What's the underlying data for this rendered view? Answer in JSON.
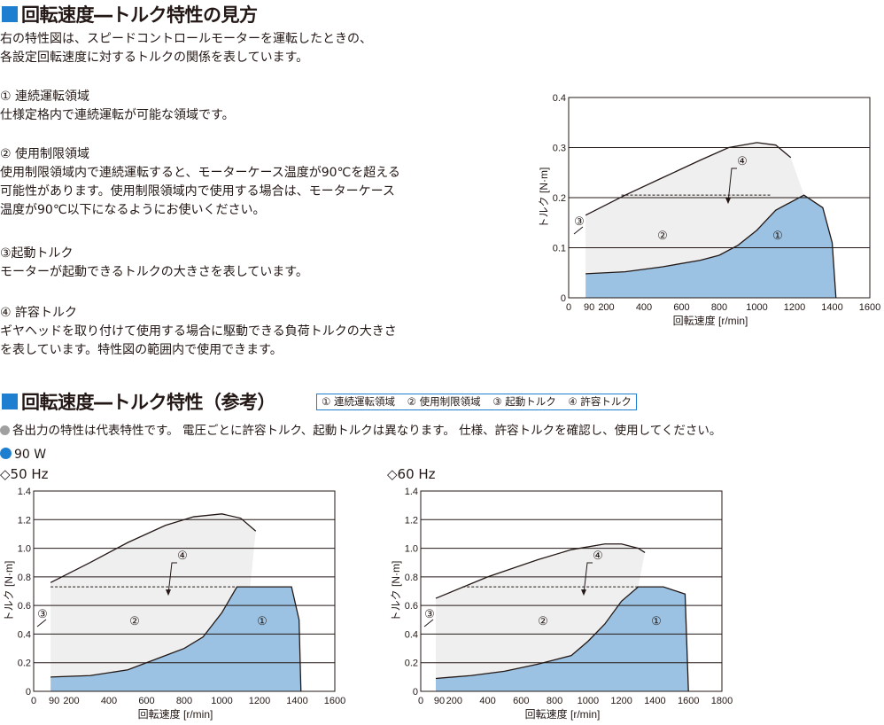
{
  "section1": {
    "title": "回転速度―トルク特性の見方",
    "intro": [
      "右の特性図は、スピードコントロールモーターを運転したときの、",
      "各設定回転速度に対するトルクの関係を表しています。"
    ],
    "items": [
      {
        "heading": "① 連続運転領域",
        "lines": [
          "仕様定格内で連続運転が可能な領域です。"
        ]
      },
      {
        "heading": "② 使用制限領域",
        "lines": [
          "使用制限領域内で連続運転すると、モーターケース温度が90℃を超える",
          "可能性があります。使用制限領域内で使用する場合は、モーターケース",
          "温度が90℃以下になるようにお使いください。"
        ]
      },
      {
        "heading": "③起動トルク",
        "lines": [
          "モーターが起動できるトルクの大きさを表しています。"
        ]
      },
      {
        "heading": "④ 許容トルク",
        "lines": [
          "ギヤヘッドを取り付けて使用する場合に駆動できる負荷トルクの大きさ",
          "を表しています。特性図の範囲内で使用できます。"
        ]
      }
    ]
  },
  "section2": {
    "title": "回転速度―トルク特性（参考）",
    "legend": [
      "① 連続運転領域",
      "② 使用制限領域",
      "③ 起動トルク",
      "④ 許容トルク"
    ],
    "note": "各出力の特性は代表特性です。 電圧ごとに許容トルク、起動トルクは異なります。 仕様、許容トルクを確認し、使用してください。",
    "model": "90 W",
    "colors": {
      "note_dot": "#a0a0a0",
      "model_dot": "#1e7fd0",
      "continuous": "#9bc2e2",
      "limited": "#efefef",
      "accent": "#1e7fd0"
    }
  },
  "charts_meta": [
    {
      "id": "explain",
      "subtitle": ""
    },
    {
      "id": "hz50",
      "subtitle": "◇50 Hz"
    },
    {
      "id": "hz60",
      "subtitle": "◇60 Hz"
    }
  ],
  "chart_data": [
    {
      "type": "area",
      "xlabel": "回転速度 [r/min]",
      "ylabel": "トルク [N·m]",
      "xlim": [
        0,
        1600
      ],
      "ylim": [
        0,
        0.4
      ],
      "xticks": [
        "0",
        "90",
        "200",
        "400",
        "600",
        "800",
        "1000",
        "1200",
        "1400",
        "1600"
      ],
      "yticks": [
        "0",
        "0.1",
        "0.2",
        "0.3",
        "0.4"
      ],
      "grid": "horizontal",
      "region_labels": [
        "①",
        "②",
        "③",
        "④"
      ],
      "series": [
        {
          "name": "① 連続運転領域",
          "x": [
            90,
            300,
            500,
            700,
            800,
            900,
            1000,
            1100,
            1250,
            1350,
            1400,
            1420
          ],
          "y": [
            0.048,
            0.052,
            0.062,
            0.075,
            0.085,
            0.105,
            0.135,
            0.175,
            0.205,
            0.18,
            0.11,
            0.0
          ]
        },
        {
          "name": "使用制限領域上限",
          "x": [
            90,
            300,
            500,
            700,
            850,
            1000,
            1100,
            1180
          ],
          "y": [
            0.165,
            0.205,
            0.24,
            0.275,
            0.3,
            0.31,
            0.305,
            0.28
          ]
        },
        {
          "name": "④ 許容トルク",
          "x": [
            280,
            1080
          ],
          "y": [
            0.205,
            0.205
          ]
        }
      ]
    },
    {
      "type": "area",
      "xlabel": "回転速度 [r/min]",
      "ylabel": "トルク [N·m]",
      "xlim": [
        0,
        1600
      ],
      "ylim": [
        0,
        1.4
      ],
      "xticks": [
        "0",
        "90",
        "200",
        "400",
        "600",
        "800",
        "1000",
        "1200",
        "1400",
        "1600"
      ],
      "yticks": [
        "0",
        "0.2",
        "0.4",
        "0.6",
        "0.8",
        "1.0",
        "1.2",
        "1.4"
      ],
      "grid": "horizontal",
      "region_labels": [
        "①",
        "②",
        "③",
        "④"
      ],
      "series": [
        {
          "name": "① 連続運転領域",
          "x": [
            90,
            300,
            500,
            700,
            800,
            900,
            1000,
            1080,
            1150,
            1250,
            1370,
            1410,
            1420
          ],
          "y": [
            0.1,
            0.11,
            0.15,
            0.25,
            0.3,
            0.38,
            0.55,
            0.73,
            0.73,
            0.73,
            0.73,
            0.5,
            0.0
          ]
        },
        {
          "name": "使用制限領域上限",
          "x": [
            90,
            300,
            500,
            700,
            850,
            1000,
            1100,
            1180
          ],
          "y": [
            0.76,
            0.9,
            1.04,
            1.16,
            1.22,
            1.24,
            1.21,
            1.12
          ]
        },
        {
          "name": "④ 許容トルク",
          "x": [
            90,
            1100
          ],
          "y": [
            0.73,
            0.73
          ]
        }
      ]
    },
    {
      "type": "area",
      "xlabel": "回転速度 [r/min]",
      "ylabel": "トルク [N·m]",
      "xlim": [
        0,
        1800
      ],
      "ylim": [
        0,
        1.4
      ],
      "xticks": [
        "0",
        "90",
        "200",
        "400",
        "600",
        "800",
        "1000",
        "1200",
        "1400",
        "1600",
        "1800"
      ],
      "yticks": [
        "0",
        "0.2",
        "0.4",
        "0.6",
        "0.8",
        "1.0",
        "1.2",
        "1.4"
      ],
      "grid": "horizontal",
      "region_labels": [
        "①",
        "②",
        "③",
        "④"
      ],
      "series": [
        {
          "name": "① 連続運転領域",
          "x": [
            90,
            300,
            500,
            700,
            800,
            900,
            1000,
            1100,
            1200,
            1300,
            1450,
            1580,
            1600
          ],
          "y": [
            0.09,
            0.11,
            0.14,
            0.19,
            0.22,
            0.25,
            0.35,
            0.47,
            0.63,
            0.73,
            0.73,
            0.68,
            0.0
          ]
        },
        {
          "name": "使用制限領域上限",
          "x": [
            90,
            400,
            700,
            900,
            1100,
            1200,
            1300,
            1340
          ],
          "y": [
            0.65,
            0.8,
            0.92,
            0.99,
            1.03,
            1.03,
            1.0,
            0.97
          ]
        },
        {
          "name": "④ 許容トルク",
          "x": [
            250,
            1300
          ],
          "y": [
            0.73,
            0.73
          ]
        }
      ]
    }
  ]
}
